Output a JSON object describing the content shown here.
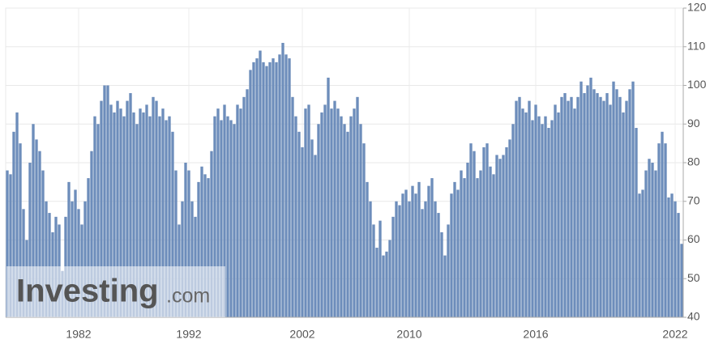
{
  "chart_data": {
    "type": "bar",
    "categories": [
      null,
      null,
      null,
      null,
      null,
      null,
      null,
      null,
      null,
      null,
      null,
      null,
      null,
      null,
      null,
      null,
      null,
      null,
      null,
      null,
      null,
      null,
      "1982",
      null,
      null,
      null,
      null,
      null,
      null,
      null,
      null,
      null,
      null,
      null,
      null,
      null,
      null,
      null,
      null,
      null,
      null,
      null,
      null,
      null,
      null,
      null,
      null,
      null,
      null,
      null,
      null,
      null,
      null,
      null,
      null,
      null,
      "1992",
      null,
      null,
      null,
      null,
      null,
      null,
      null,
      null,
      null,
      null,
      null,
      null,
      null,
      null,
      null,
      null,
      null,
      null,
      null,
      null,
      null,
      null,
      null,
      null,
      null,
      null,
      null,
      null,
      null,
      null,
      null,
      null,
      null,
      null,
      "2002",
      null,
      null,
      null,
      null,
      null,
      null,
      null,
      null,
      null,
      null,
      null,
      null,
      null,
      null,
      null,
      null,
      null,
      null,
      null,
      null,
      null,
      null,
      null,
      null,
      null,
      null,
      null,
      null,
      null,
      null,
      null,
      null,
      "2010",
      null,
      null,
      null,
      null,
      null,
      null,
      null,
      null,
      null,
      null,
      null,
      null,
      null,
      null,
      null,
      null,
      null,
      null,
      null,
      null,
      null,
      null,
      null,
      null,
      null,
      null,
      null,
      null,
      null,
      null,
      null,
      null,
      null,
      null,
      null,
      null,
      null,
      null,
      "2016",
      null,
      null,
      null,
      null,
      null,
      null,
      null,
      null,
      null,
      null,
      null,
      null,
      null,
      null,
      null,
      null,
      null,
      null,
      null,
      null,
      null,
      null,
      null,
      null,
      null,
      null,
      null,
      null,
      null,
      null,
      null,
      null,
      null,
      null,
      null,
      null,
      null,
      null,
      null,
      null,
      null,
      null,
      "2022",
      null,
      null
    ],
    "values": [
      78,
      77,
      88,
      93,
      85,
      68,
      60,
      80,
      90,
      86,
      83,
      78,
      70,
      67,
      62,
      66,
      64,
      52,
      66,
      75,
      70,
      73,
      68,
      64,
      70,
      76,
      83,
      92,
      90,
      96,
      100,
      100,
      95,
      93,
      96,
      94,
      92,
      96,
      98,
      93,
      90,
      94,
      93,
      95,
      92,
      97,
      96,
      92,
      94,
      91,
      92,
      88,
      78,
      64,
      70,
      80,
      78,
      70,
      66,
      75,
      79,
      77,
      76,
      83,
      92,
      94,
      91,
      95,
      92,
      91,
      90,
      95,
      94,
      97,
      99,
      104,
      106,
      107,
      109,
      106,
      105,
      106,
      107,
      106,
      108,
      111,
      108,
      107,
      97,
      92,
      88,
      84,
      94,
      95,
      86,
      82,
      90,
      93,
      95,
      102,
      94,
      96,
      94,
      92,
      90,
      88,
      92,
      94,
      97,
      90,
      85,
      75,
      70,
      64,
      58,
      65,
      56,
      57,
      60,
      66,
      70,
      69,
      72,
      73,
      70,
      74,
      72,
      75,
      68,
      70,
      74,
      76,
      70,
      67,
      62,
      56,
      64,
      72,
      75,
      73,
      78,
      76,
      80,
      85,
      83,
      76,
      78,
      84,
      85,
      79,
      77,
      82,
      81,
      82,
      84,
      86,
      90,
      96,
      97,
      94,
      93,
      96,
      91,
      95,
      92,
      90,
      92,
      89,
      91,
      95,
      93,
      97,
      98,
      96,
      97,
      94,
      97,
      101,
      98,
      100,
      102,
      99,
      98,
      97,
      96,
      98,
      95,
      101,
      99,
      97,
      93,
      96,
      99,
      101,
      89,
      72,
      73,
      78,
      81,
      80,
      78,
      85,
      88,
      85,
      71,
      72,
      70,
      67,
      59
    ],
    "color": "#6d8dbb",
    "ylim": [
      40,
      120
    ],
    "yticks": [
      40,
      50,
      60,
      70,
      80,
      90,
      100,
      110,
      120
    ],
    "grid": true
  },
  "watermark": {
    "brand": "Investing",
    "suffix": ".com"
  }
}
